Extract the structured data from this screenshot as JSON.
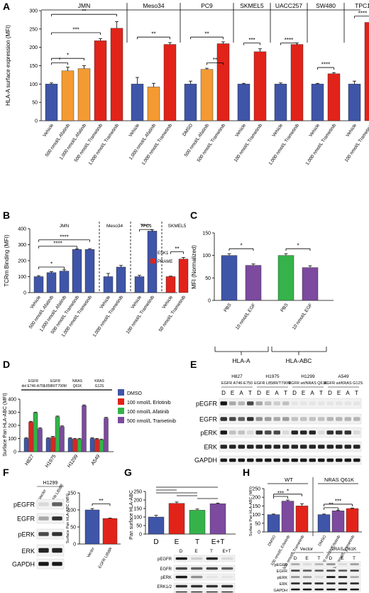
{
  "colors": {
    "blue": "#3f55a8",
    "orange": "#f49a32",
    "red": "#e2231a",
    "green": "#35b34a",
    "purple": "#7c4a9e"
  },
  "chart_data": [
    {
      "panel": "A",
      "type": "bar",
      "ylabel": "HLA-A surface expression (MFI)",
      "ylim": [
        0,
        300
      ],
      "yticks": [
        0,
        50,
        100,
        150,
        200,
        250,
        300
      ],
      "groups": [
        "JMN",
        "Meso34",
        "PC9",
        "SKMEL5",
        "UACC257",
        "SW480",
        "TPC1"
      ],
      "categories": [
        "Vehicle",
        "500 nmol/L Afatinib",
        "1,000 nmol/L Afatinib",
        "500 nmol/L Trametinib",
        "1,000 nmol/L Trametinib",
        "Vehicle",
        "1,000 nmol/L Afatinib",
        "1,000 nmol/L Trametinib",
        "DMSO",
        "500 nmol/L Afatinib",
        "500 nmol/L Trametinib",
        "Vehicle",
        "100 nmol/L Trametinib",
        "Vehicle",
        "1,000 nmol/L Trametinib",
        "Vehicle",
        "1,000 nmol/L Trametinib",
        "Vehicle",
        "100 nmol/L Trametinib"
      ],
      "group_of": [
        0,
        0,
        0,
        0,
        0,
        1,
        1,
        1,
        2,
        2,
        2,
        3,
        3,
        4,
        4,
        5,
        5,
        6,
        6
      ],
      "values": [
        100,
        136,
        142,
        218,
        252,
        100,
        92,
        208,
        100,
        140,
        210,
        100,
        188,
        100,
        208,
        100,
        128,
        100,
        268
      ],
      "errors": [
        3,
        10,
        8,
        6,
        18,
        18,
        10,
        5,
        8,
        3,
        5,
        2,
        8,
        3,
        4,
        2,
        3,
        8,
        4
      ],
      "colors": [
        "blue",
        "orange",
        "orange",
        "red",
        "red",
        "blue",
        "orange",
        "red",
        "blue",
        "orange",
        "red",
        "blue",
        "red",
        "blue",
        "red",
        "blue",
        "red",
        "blue",
        "red"
      ],
      "significance": [
        "*",
        "*",
        "***",
        "**",
        "**",
        "**",
        "***",
        "****",
        "****",
        "**",
        "****"
      ]
    },
    {
      "panel": "B",
      "type": "bar",
      "ylabel": "TCRm Binding (MFI)",
      "ylim": [
        0,
        400
      ],
      "yticks": [
        0,
        100,
        200,
        300,
        400
      ],
      "groups": [
        "JMN",
        "Meso34",
        "TPC1",
        "SKMEL5"
      ],
      "legend": [
        "ESK1",
        "PRAME"
      ],
      "categories": [
        "Vehicle",
        "500 nmol/L Afatinib",
        "1,000 nmol/L Afatinib",
        "500 nmol/L Trametinib",
        "1,000 nmol/L Trametinib",
        "Vehicle",
        "1,000 nmol/L Trametinib",
        "Vehicle",
        "100 nmol/L Trametinib",
        "Vehicle",
        "50 nmol/L Trametinib"
      ],
      "values": [
        100,
        125,
        135,
        270,
        270,
        100,
        160,
        100,
        385,
        100,
        210
      ],
      "errors": [
        6,
        6,
        8,
        4,
        5,
        20,
        10,
        8,
        8,
        3,
        10
      ],
      "colors": [
        "blue",
        "blue",
        "blue",
        "blue",
        "blue",
        "blue",
        "blue",
        "blue",
        "blue",
        "red",
        "red"
      ],
      "significance": [
        "*",
        "****",
        "****",
        "****",
        "**"
      ]
    },
    {
      "panel": "C",
      "type": "bar",
      "ylabel": "MFI (Normalized)",
      "ylim": [
        0,
        150
      ],
      "yticks": [
        0,
        50,
        100,
        150
      ],
      "categories": [
        "PBS",
        "10 nmol/L EGF",
        "PBS",
        "10 nmol/L EGF"
      ],
      "values": [
        100,
        78,
        100,
        73
      ],
      "errors": [
        4,
        3,
        4,
        4
      ],
      "colors": [
        "blue",
        "purple",
        "green",
        "purple"
      ],
      "groups": [
        "HLA-A",
        "HLA-ABC"
      ],
      "significance": [
        "*",
        "*"
      ]
    },
    {
      "panel": "D",
      "type": "bar",
      "ylabel": "Surface Pan HLA-ABC (MFI)",
      "ylim": [
        0,
        400
      ],
      "yticks": [
        0,
        100,
        200,
        300,
        400
      ],
      "categories": [
        "H827",
        "H1975",
        "H1299",
        "A549"
      ],
      "group_headers": [
        "EGFR del E746-A750",
        "EGFR L858R/T790M",
        "NRAS Q61K",
        "KRAS G12S"
      ],
      "series": [
        {
          "name": "DMSO",
          "values": [
            100,
            100,
            100,
            100
          ],
          "color": "blue"
        },
        {
          "name": "100 nmol/L Erlotinib",
          "values": [
            225,
            110,
            95,
            95
          ],
          "color": "red"
        },
        {
          "name": "100 nmol/L Afatinib",
          "values": [
            295,
            265,
            95,
            90
          ],
          "color": "green"
        },
        {
          "name": "500 nmol/L Trametinib",
          "values": [
            175,
            190,
            350,
            255
          ],
          "color": "purple"
        }
      ]
    },
    {
      "panel": "F",
      "type": "bar",
      "ylabel": "Surface Pan HLA-ABC (MFI)",
      "ylim": [
        0,
        150
      ],
      "yticks": [
        0,
        50,
        100,
        150
      ],
      "categories": [
        "Vector",
        "EGFR L858R"
      ],
      "values": [
        100,
        75
      ],
      "errors": [
        4,
        1
      ],
      "colors": [
        "blue",
        "red"
      ],
      "significance": [
        "**"
      ]
    },
    {
      "panel": "G",
      "type": "bar",
      "ylabel": "Pan surface HLA-ABC",
      "ylim": [
        0,
        250
      ],
      "yticks": [
        0,
        50,
        100,
        150,
        200,
        250
      ],
      "categories": [
        "D",
        "E",
        "T",
        "E+T"
      ],
      "values": [
        100,
        180,
        140,
        178
      ],
      "errors": [
        10,
        8,
        7,
        4
      ],
      "colors": [
        "blue",
        "red",
        "green",
        "purple"
      ]
    },
    {
      "panel": "H",
      "type": "bar",
      "ylabel": "Surface Pan HLA-ABC (MFI)",
      "ylim": [
        0,
        250
      ],
      "yticks": [
        0,
        50,
        100,
        150,
        200,
        250
      ],
      "groups": [
        "WT",
        "NRAS Q61K"
      ],
      "categories": [
        "DMSO",
        "100 nmol/L Erlotinib",
        "500 nmol/L Trametinib",
        "DMSO",
        "100 nmol/L Erlotinib",
        "500 nmol/L Trametinib"
      ],
      "values": [
        100,
        178,
        150,
        100,
        122,
        135
      ],
      "errors": [
        3,
        6,
        12,
        3,
        4,
        3
      ],
      "colors": [
        "blue",
        "purple",
        "red",
        "blue",
        "purple",
        "red"
      ],
      "significance": [
        "***",
        "*",
        "**",
        "***"
      ]
    }
  ],
  "panel_letters": [
    "A",
    "B",
    "C",
    "D",
    "E",
    "F",
    "G",
    "H"
  ],
  "blots": {
    "E": {
      "cell_lines": [
        "H827",
        "H1975",
        "H1299",
        "A549"
      ],
      "subtitles": [
        "EGFR A746-E750",
        "EGFR L858R/T790M",
        "EGFR wt/NRAS Q61K",
        "EGFR wt/KRAS G12S"
      ],
      "lanes": [
        "D",
        "E",
        "A",
        "T"
      ],
      "rows": [
        "pEGFR",
        "EGFR",
        "pERK",
        "ERK",
        "GAPDH"
      ]
    },
    "F": {
      "title": "H1299",
      "lanes": [
        "Vector",
        "EGFR L858R"
      ],
      "rows": [
        "pEGFR",
        "EGFR",
        "pERK",
        "ERK",
        "GAPDH"
      ]
    },
    "G": {
      "lanes": [
        "D",
        "E",
        "T",
        "E+T"
      ],
      "rows": [
        "pEGFR",
        "EGFR",
        "pERK",
        "ERK1/2",
        "GAPDH"
      ]
    },
    "H": {
      "groups": [
        "Vector",
        "NRAS Q61K"
      ],
      "lanes": [
        "D",
        "E",
        "T",
        "D",
        "E",
        "T"
      ],
      "rows": [
        "pEGFR",
        "EGFR",
        "pERK",
        "ERK",
        "GAPDH"
      ]
    }
  }
}
